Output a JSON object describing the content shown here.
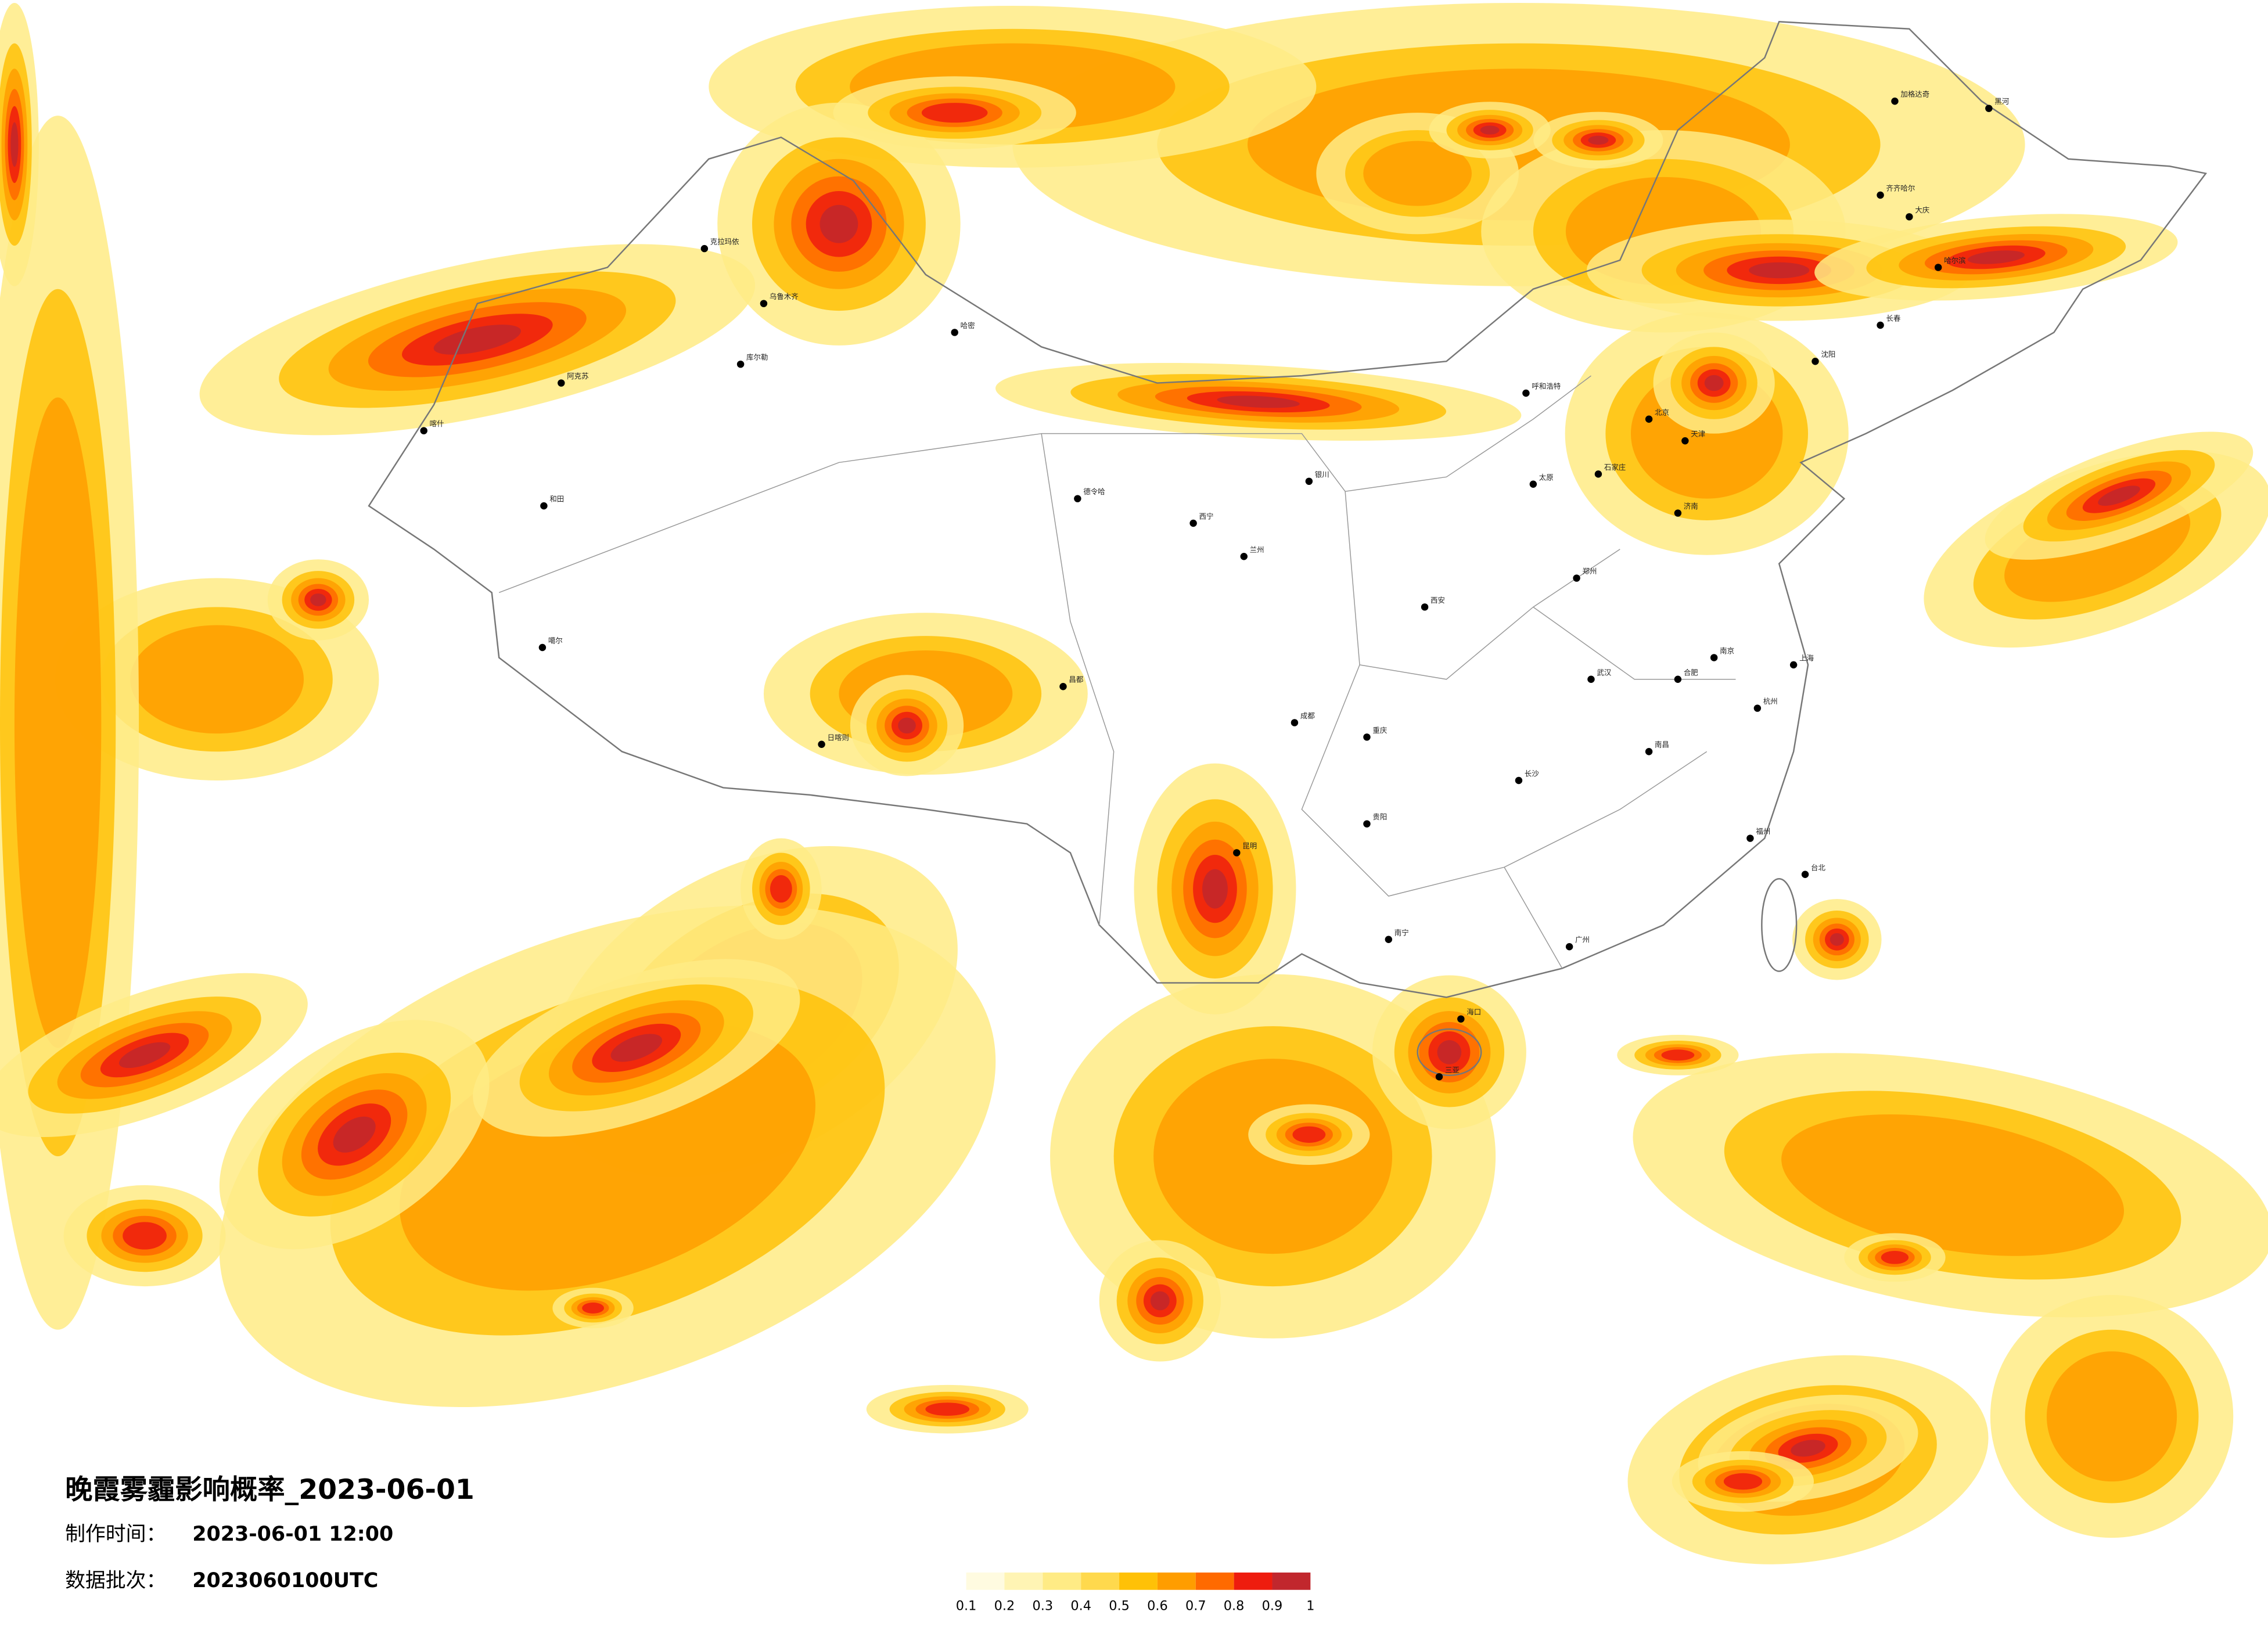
{
  "header": {
    "title": "晚霞雾霾影响概率_2023-06-01",
    "made_label": "制作时间：",
    "made_time": "2023-06-01 12:00",
    "batch_label": "数据批次：",
    "batch": "2023060100UTC"
  },
  "legend": {
    "ticks": [
      0.1,
      0.2,
      0.3,
      0.4,
      0.5,
      0.6,
      0.7,
      0.8,
      0.9,
      1
    ],
    "colors": [
      "#fffbe0",
      "#fff4b4",
      "#ffeb85",
      "#ffd94d",
      "#ffc107",
      "#ff9d00",
      "#ff6a00",
      "#ee1c0e",
      "#c1272d"
    ]
  },
  "cities": [
    "克拉玛依",
    "乌鲁木齐",
    "阿克苏",
    "喀什",
    "和田",
    "库尔勒",
    "哈密",
    "德令哈",
    "噶尔",
    "日喀则",
    "昌都",
    "呼和浩特",
    "北京",
    "天津",
    "石家庄",
    "太原",
    "济南",
    "郑州",
    "西安",
    "兰州",
    "西宁",
    "银川",
    "成都",
    "重庆",
    "贵阳",
    "昆明",
    "南宁",
    "广州",
    "长沙",
    "武汉",
    "南昌",
    "福州",
    "杭州",
    "上海",
    "南京",
    "合肥",
    "沈阳",
    "长春",
    "哈尔滨",
    "齐齐哈尔",
    "大庆",
    "台北",
    "海口",
    "三亚",
    "加格达奇",
    "黑河"
  ]
}
